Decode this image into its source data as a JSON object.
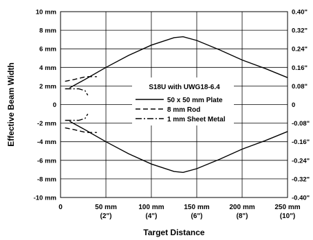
{
  "chart_data": {
    "type": "line",
    "title": "S18U with UWG18-6.4",
    "xlabel": "Target Distance",
    "ylabel": "Effective Beam Width",
    "xlim": [
      0,
      250
    ],
    "ylim": [
      -10,
      10
    ],
    "grid": true,
    "legend_position": "center-right",
    "x_ticks": [
      {
        "value": 0,
        "label": "0",
        "sublabel": ""
      },
      {
        "value": 50,
        "label": "50 mm",
        "sublabel": "(2\")"
      },
      {
        "value": 100,
        "label": "100 mm",
        "sublabel": "(4\")"
      },
      {
        "value": 150,
        "label": "150 mm",
        "sublabel": "(6\")"
      },
      {
        "value": 200,
        "label": "200 mm",
        "sublabel": "(8\")"
      },
      {
        "value": 250,
        "label": "250 mm",
        "sublabel": "(10\")"
      }
    ],
    "y_ticks_left": [
      {
        "value": 10,
        "label": "10 mm"
      },
      {
        "value": 8,
        "label": "8 mm"
      },
      {
        "value": 6,
        "label": "6 mm"
      },
      {
        "value": 4,
        "label": "4 mm"
      },
      {
        "value": 2,
        "label": "2 mm"
      },
      {
        "value": 0,
        "label": "0"
      },
      {
        "value": -2,
        "label": "-2 mm"
      },
      {
        "value": -4,
        "label": "-4 mm"
      },
      {
        "value": -6,
        "label": "-6 mm"
      },
      {
        "value": -8,
        "label": "-8 mm"
      },
      {
        "value": -10,
        "label": "-10 mm"
      }
    ],
    "y_ticks_right": [
      {
        "value": 10,
        "label": "0.40\""
      },
      {
        "value": 8,
        "label": "0.32\""
      },
      {
        "value": 6,
        "label": "0.24\""
      },
      {
        "value": 4,
        "label": "0.16\""
      },
      {
        "value": 2,
        "label": "0.08\""
      },
      {
        "value": 0,
        "label": "0"
      },
      {
        "value": -2,
        "label": "-0.08\""
      },
      {
        "value": -4,
        "label": "-0.16\""
      },
      {
        "value": -6,
        "label": "-0.24\""
      },
      {
        "value": -8,
        "label": "-0.32\""
      },
      {
        "value": -10,
        "label": "-0.40\""
      }
    ],
    "series": [
      {
        "name": "50 x 50 mm Plate",
        "style": "solid",
        "upper": [
          [
            10,
            1.8
          ],
          [
            25,
            2.6
          ],
          [
            50,
            4.0
          ],
          [
            75,
            5.3
          ],
          [
            100,
            6.4
          ],
          [
            125,
            7.2
          ],
          [
            135,
            7.3
          ],
          [
            150,
            6.9
          ],
          [
            175,
            5.9
          ],
          [
            200,
            4.8
          ],
          [
            225,
            3.9
          ],
          [
            250,
            2.9
          ]
        ],
        "lower": [
          [
            10,
            -1.8
          ],
          [
            25,
            -2.6
          ],
          [
            50,
            -4.0
          ],
          [
            75,
            -5.3
          ],
          [
            100,
            -6.4
          ],
          [
            125,
            -7.2
          ],
          [
            135,
            -7.3
          ],
          [
            150,
            -6.9
          ],
          [
            175,
            -5.9
          ],
          [
            200,
            -4.8
          ],
          [
            225,
            -3.9
          ],
          [
            250,
            -2.9
          ]
        ]
      },
      {
        "name": "8 mm Rod",
        "style": "dashed",
        "upper": [
          [
            5,
            2.5
          ],
          [
            15,
            2.7
          ],
          [
            28,
            3.0
          ],
          [
            40,
            3.0
          ]
        ],
        "lower": [
          [
            5,
            -2.5
          ],
          [
            15,
            -2.7
          ],
          [
            28,
            -3.0
          ],
          [
            40,
            -3.0
          ]
        ]
      },
      {
        "name": "1 mm Sheet Metal",
        "style": "dashdot",
        "upper": [
          [
            5,
            1.7
          ],
          [
            20,
            1.7
          ],
          [
            27,
            1.5
          ],
          [
            30,
            1.0
          ]
        ],
        "lower": [
          [
            5,
            -1.7
          ],
          [
            20,
            -1.7
          ],
          [
            27,
            -1.5
          ],
          [
            30,
            -1.0
          ]
        ]
      }
    ]
  }
}
